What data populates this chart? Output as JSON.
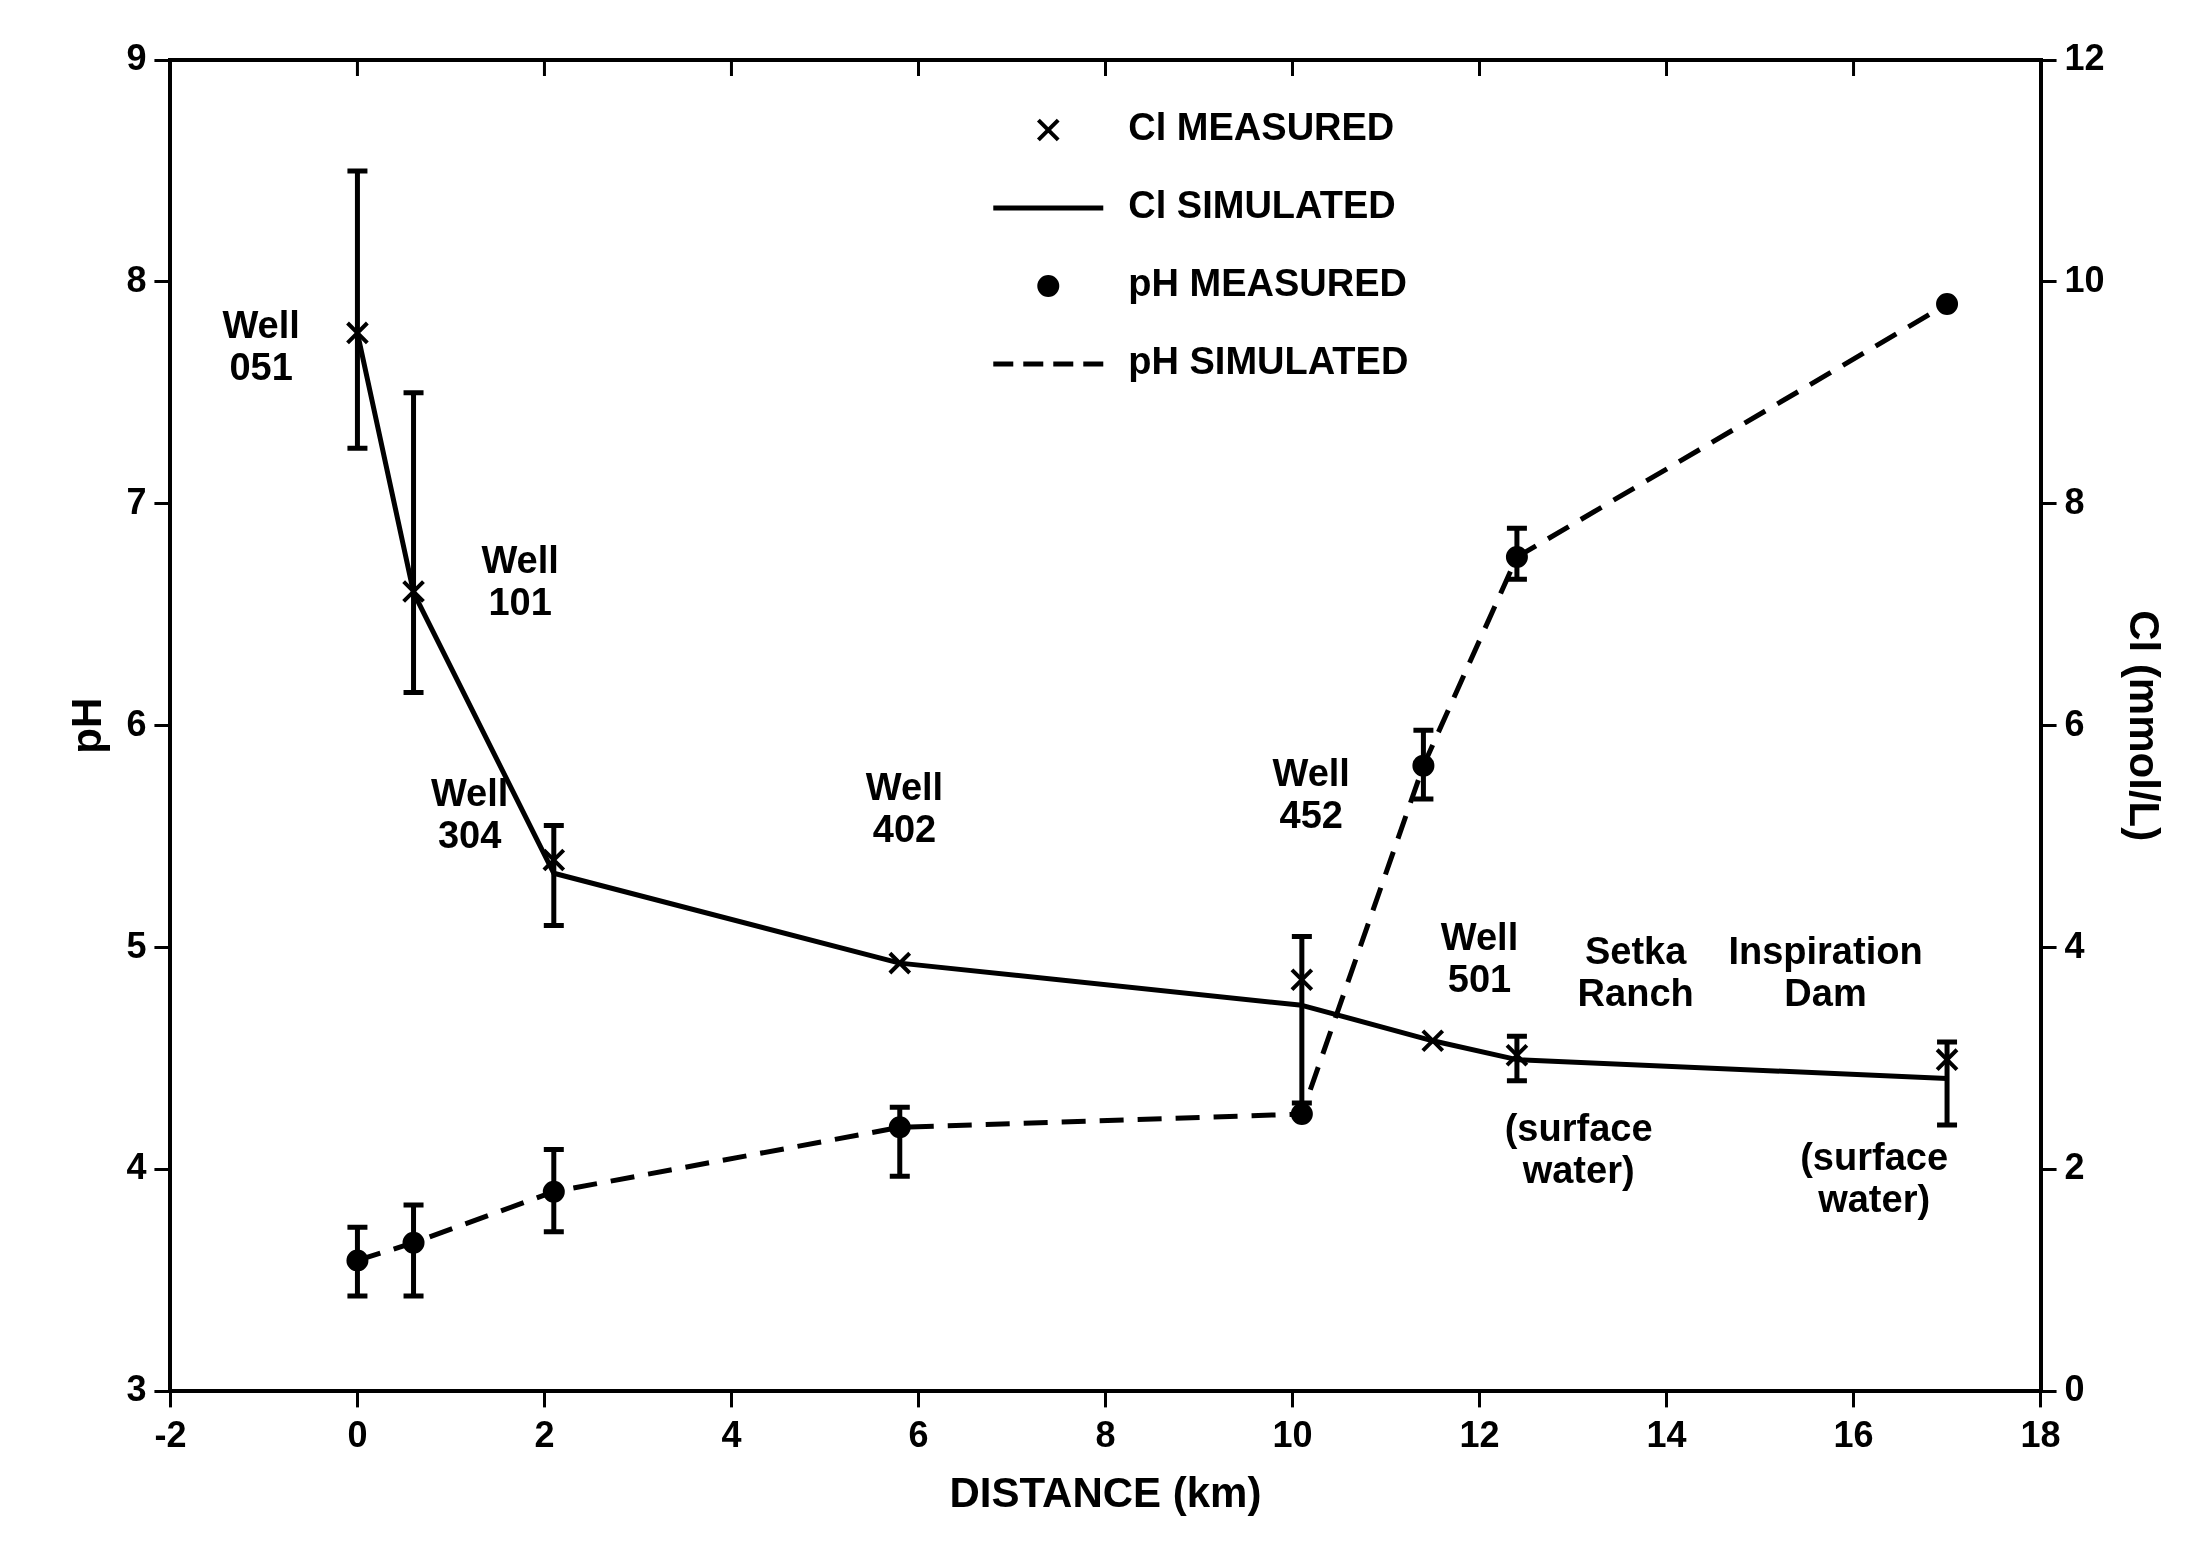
{
  "chart_data": {
    "type": "line",
    "xlabel": "DISTANCE (km)",
    "ylabel": "pH",
    "y2label": "Cl (mmol/L)",
    "xlim": [
      -2,
      18
    ],
    "xticks": [
      -2,
      0,
      2,
      4,
      6,
      8,
      10,
      12,
      14,
      16,
      18
    ],
    "ylim": [
      3,
      9
    ],
    "yticks": [
      3,
      4,
      5,
      6,
      7,
      8,
      9
    ],
    "y2lim": [
      0,
      12
    ],
    "y2ticks": [
      0,
      2,
      4,
      6,
      8,
      10,
      12
    ],
    "grid": false,
    "legend": "top",
    "series": [
      {
        "name": "Cl MEASURED",
        "type": "scatter",
        "axis": "y2",
        "marker": "cross",
        "color": "#000000",
        "x": [
          0,
          0.6,
          2.1,
          5.8,
          10.1,
          11.5,
          12.4,
          17
        ],
        "values": [
          9.54,
          7.21,
          4.79,
          3.86,
          3.71,
          3.16,
          3.03,
          2.99
        ],
        "errors": [
          [
            8.5,
            11.0
          ],
          [
            6.3,
            9.0
          ],
          [
            4.2,
            5.1
          ],
          null,
          [
            2.6,
            4.1
          ],
          null,
          [
            2.8,
            3.2
          ],
          [
            2.4,
            3.15
          ]
        ]
      },
      {
        "name": "Cl SIMULATED",
        "type": "line",
        "axis": "y2",
        "marker": "none",
        "line_style": "solid",
        "color": "#000000",
        "x": [
          0,
          0.6,
          2.1,
          5.8,
          10.1,
          11.5,
          12.4,
          17
        ],
        "values": [
          9.54,
          7.2,
          4.67,
          3.86,
          3.48,
          3.16,
          2.99,
          2.82
        ]
      },
      {
        "name": "pH MEASURED",
        "type": "scatter",
        "axis": "y",
        "marker": "circle",
        "color": "#000000",
        "x": [
          0,
          0.6,
          2.1,
          5.8,
          10.1,
          11.4,
          12.4,
          17
        ],
        "values": [
          3.59,
          3.67,
          3.9,
          4.19,
          4.25,
          5.82,
          6.76,
          7.9
        ],
        "errors": [
          [
            3.43,
            3.74
          ],
          [
            3.43,
            3.84
          ],
          [
            3.72,
            4.09
          ],
          [
            3.97,
            4.28
          ],
          null,
          [
            5.67,
            5.98
          ],
          [
            6.66,
            6.89
          ],
          null
        ]
      },
      {
        "name": "pH SIMULATED",
        "type": "line",
        "axis": "y",
        "marker": "none",
        "line_style": "dashed",
        "color": "#000000",
        "x": [
          0,
          0.6,
          2.1,
          5.8,
          10.1,
          11.4,
          12.4,
          17
        ],
        "values": [
          3.59,
          3.67,
          3.9,
          4.19,
          4.25,
          5.82,
          6.76,
          7.9
        ]
      }
    ],
    "annotations": [
      "Well\n051",
      "Well\n101",
      "Well\n304",
      "Well\n402",
      "Well\n452",
      "Well\n501",
      "Setka\nRanch",
      "Inspiration\nDam",
      "(surface\nwater)",
      "(surface\nwater)"
    ]
  }
}
